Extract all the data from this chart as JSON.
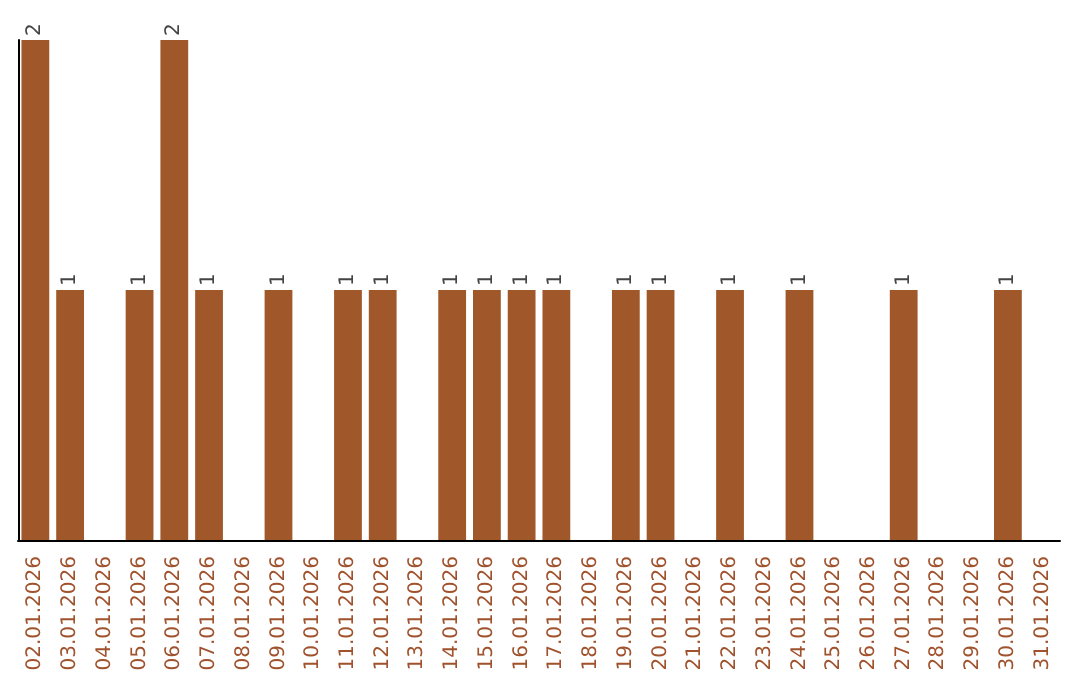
{
  "chart_data": {
    "type": "bar",
    "categories": [
      "02.01.2026",
      "03.01.2026",
      "04.01.2026",
      "05.01.2026",
      "06.01.2026",
      "07.01.2026",
      "08.01.2026",
      "09.01.2026",
      "10.01.2026",
      "11.01.2026",
      "12.01.2026",
      "13.01.2026",
      "14.01.2026",
      "15.01.2026",
      "16.01.2026",
      "17.01.2026",
      "18.01.2026",
      "19.01.2026",
      "20.01.2026",
      "21.01.2026",
      "22.01.2026",
      "23.01.2026",
      "24.01.2026",
      "25.01.2026",
      "26.01.2026",
      "27.01.2026",
      "28.01.2026",
      "29.01.2026",
      "30.01.2026",
      "31.01.2026"
    ],
    "values": [
      2,
      1,
      0,
      1,
      2,
      1,
      0,
      1,
      0,
      1,
      1,
      0,
      1,
      1,
      1,
      1,
      0,
      1,
      1,
      0,
      1,
      0,
      1,
      0,
      0,
      1,
      0,
      0,
      1,
      0
    ],
    "value_labels": [
      "2",
      "1",
      null,
      "1",
      "2",
      "1",
      null,
      "1",
      null,
      "1",
      "1",
      null,
      "1",
      "1",
      "1",
      "1",
      null,
      "1",
      "1",
      null,
      "1",
      null,
      "1",
      null,
      null,
      "1",
      null,
      null,
      "1",
      null
    ],
    "color": "#a0572a"
  }
}
